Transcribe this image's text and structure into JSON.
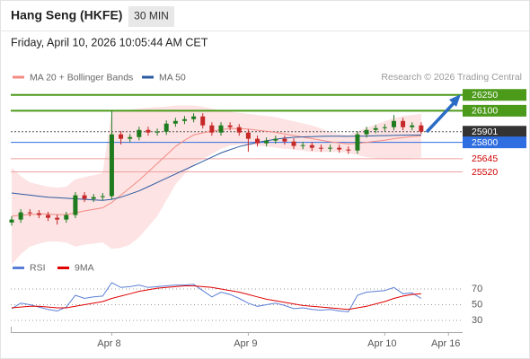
{
  "header": {
    "title": "Hang Seng (HKFE)",
    "interval": "30 MIN",
    "timestamp": "Friday, April 10, 2026 10:05:44 AM CET"
  },
  "chart_data": [
    {
      "type": "candlestick",
      "credit": "Research © 2026 Trading Central",
      "categories": [
        null,
        null,
        null,
        null,
        null,
        null,
        null,
        null,
        null,
        null,
        null,
        "Apr 8",
        null,
        null,
        null,
        null,
        null,
        null,
        null,
        null,
        null,
        null,
        null,
        null,
        null,
        null,
        "Apr 9",
        null,
        null,
        null,
        null,
        null,
        null,
        null,
        null,
        null,
        null,
        null,
        null,
        null,
        null,
        "Apr 10",
        null,
        null,
        null,
        null,
        null,
        null,
        "Apr 16"
      ],
      "open": [
        25040,
        25068,
        25136,
        25128,
        25111,
        25085,
        25068,
        25111,
        25298,
        25264,
        25281,
        25290,
        25876,
        25834,
        25850,
        25918,
        25893,
        25901,
        25978,
        26003,
        26020,
        26046,
        25961,
        25893,
        25961,
        25944,
        25893,
        25834,
        25791,
        25817,
        25834,
        25808,
        25766,
        25774,
        25749,
        25740,
        25749,
        25732,
        25723,
        25876,
        25918,
        25935,
        25944,
        26003,
        25944,
        25961,
        null,
        null,
        null
      ],
      "high": [
        25098,
        25166,
        25166,
        25158,
        25141,
        25115,
        25141,
        25328,
        25328,
        25311,
        25320,
        26100,
        25906,
        25880,
        25948,
        25948,
        25931,
        26008,
        26033,
        26050,
        26076,
        26076,
        25991,
        25991,
        25991,
        25974,
        25923,
        25864,
        25847,
        25864,
        25864,
        25838,
        25804,
        25804,
        25779,
        25779,
        25779,
        25762,
        25906,
        25948,
        25965,
        25974,
        26060,
        26033,
        25991,
        25991,
        null,
        null,
        null
      ],
      "low": [
        25010,
        25038,
        25098,
        25081,
        25055,
        25020,
        25038,
        25081,
        25234,
        25234,
        25251,
        25260,
        25780,
        25804,
        25820,
        25863,
        25863,
        25871,
        25948,
        25973,
        25990,
        25931,
        25863,
        25863,
        25914,
        25863,
        25710,
        25761,
        25761,
        25787,
        25778,
        25736,
        25736,
        25719,
        25710,
        25710,
        25702,
        25690,
        25693,
        25846,
        25888,
        25905,
        25914,
        25914,
        25914,
        25880,
        null,
        null,
        null
      ],
      "close": [
        25068,
        25136,
        25128,
        25111,
        25085,
        25068,
        25111,
        25298,
        25264,
        25281,
        25290,
        25876,
        25834,
        25850,
        25918,
        25893,
        25901,
        25978,
        26003,
        26020,
        26046,
        25961,
        25893,
        25961,
        25944,
        25893,
        25834,
        25791,
        25817,
        25834,
        25808,
        25766,
        25774,
        25749,
        25740,
        25749,
        25732,
        25723,
        25876,
        25918,
        25935,
        25944,
        26003,
        25944,
        25961,
        25901,
        null,
        null,
        null
      ],
      "up_color": "#1e7b1e",
      "down_color": "#c62828",
      "series": [
        {
          "name": "MA 20 + Bollinger Bands",
          "color": "#f28b82",
          "values": [
            25100,
            25110,
            25115,
            25120,
            25120,
            25115,
            25115,
            25130,
            25150,
            25165,
            25180,
            25230,
            25300,
            25370,
            25440,
            25520,
            25600,
            25680,
            25760,
            25820,
            25870,
            25890,
            25905,
            25920,
            25930,
            25930,
            25925,
            25915,
            25905,
            25895,
            25880,
            25865,
            25850,
            25835,
            25820,
            25805,
            25795,
            25785,
            25790,
            25800,
            25810,
            25820,
            25835,
            25845,
            25855,
            25862,
            null,
            null,
            null
          ],
          "upper": [
            25560,
            25480,
            25420,
            25400,
            25380,
            25370,
            25380,
            25450,
            25470,
            25490,
            25510,
            26090,
            26100,
            26110,
            26120,
            26130,
            26135,
            26140,
            26150,
            26150,
            26150,
            26140,
            26120,
            26100,
            26090,
            26080,
            26070,
            26060,
            26050,
            26040,
            26020,
            26000,
            25980,
            25960,
            25930,
            25900,
            25880,
            25870,
            25900,
            25940,
            25970,
            26000,
            26030,
            26050,
            26060,
            26070,
            null,
            null,
            null
          ],
          "lower": [
            24640,
            24740,
            24810,
            24840,
            24860,
            24860,
            24850,
            24810,
            24830,
            24840,
            24850,
            24790,
            24800,
            24830,
            24900,
            25000,
            25100,
            25250,
            25400,
            25500,
            25590,
            25640,
            25690,
            25740,
            25770,
            25780,
            25780,
            25770,
            25760,
            25750,
            25740,
            25730,
            25720,
            25710,
            25710,
            25710,
            25710,
            25700,
            25680,
            25660,
            25650,
            25640,
            25640,
            25640,
            25650,
            25654,
            null,
            null,
            null
          ],
          "band_color": "#fcd9d9"
        },
        {
          "name": "MA 50",
          "color": "#2c5aa0",
          "values": [
            25320,
            25310,
            25300,
            25290,
            25280,
            25275,
            25270,
            25265,
            25260,
            25255,
            25250,
            25260,
            25280,
            25310,
            25340,
            25380,
            25420,
            25460,
            25500,
            25540,
            25580,
            25620,
            25660,
            25700,
            25730,
            25760,
            25780,
            25800,
            25815,
            25830,
            25840,
            25848,
            25852,
            25855,
            25857,
            25858,
            25858,
            25857,
            25858,
            25860,
            25862,
            25864,
            25866,
            25868,
            25869,
            25870,
            null,
            null,
            null
          ]
        }
      ],
      "levels": [
        {
          "value": 26250,
          "color": "#4c9a1a",
          "box": "#4c9a1a",
          "line": "solid"
        },
        {
          "value": 26100,
          "color": "#4c9a1a",
          "box": "#4c9a1a",
          "line": "solid"
        },
        {
          "value": 25901,
          "color": "#555555",
          "box": "#333333",
          "line": "dotted"
        },
        {
          "value": 25800,
          "color": "#2f6ee0",
          "box": "#2f6ee0",
          "line": "solid"
        },
        {
          "value": 25645,
          "color": "#f0a0a0",
          "box": null,
          "text_color": "#d00000",
          "line": "solid"
        },
        {
          "value": 25520,
          "color": "#f0a0a0",
          "box": null,
          "text_color": "#d00000",
          "line": "solid"
        }
      ],
      "ylim": [
        24750,
        26350
      ]
    },
    {
      "type": "line",
      "series": [
        {
          "name": "RSI",
          "color": "#5b7fd6",
          "values": [
            45,
            52,
            50,
            47,
            44,
            42,
            47,
            62,
            58,
            60,
            61,
            78,
            72,
            73,
            75,
            72,
            73,
            74,
            75,
            75,
            76,
            68,
            60,
            66,
            63,
            58,
            52,
            48,
            50,
            52,
            49,
            45,
            46,
            44,
            43,
            44,
            42,
            41,
            62,
            66,
            67,
            68,
            72,
            64,
            65,
            58,
            null,
            null,
            null
          ]
        },
        {
          "name": "9MA",
          "color": "#e00000",
          "values": [
            46,
            47,
            48,
            48,
            47,
            46,
            46,
            48,
            50,
            52,
            54,
            58,
            61,
            64,
            67,
            69,
            71,
            72,
            73,
            74,
            74,
            73,
            72,
            70,
            68,
            66,
            63,
            60,
            57,
            55,
            53,
            51,
            49,
            48,
            47,
            46,
            45,
            44,
            46,
            48,
            51,
            54,
            58,
            61,
            63,
            64,
            null,
            null,
            null
          ]
        }
      ],
      "ylim": [
        18,
        86
      ],
      "yticks": [
        30,
        50,
        70
      ],
      "grid": true
    }
  ]
}
